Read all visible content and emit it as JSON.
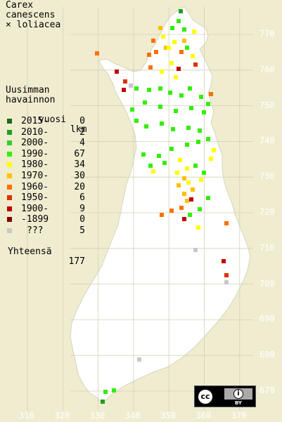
{
  "title": {
    "line1": "Carex",
    "line2": "canescens",
    "line3": "× loliacea"
  },
  "legend": {
    "heading1": "Uusimman",
    "heading2": "havainnon",
    "heading3_left": "vuosi",
    "heading3_right": "lkm",
    "items": [
      {
        "label": "2015-",
        "count": "0",
        "color": "#1a6b1a"
      },
      {
        "label": "2010-",
        "count": "2",
        "color": "#1ea01e"
      },
      {
        "label": "2000-",
        "count": "4",
        "color": "#33cc33"
      },
      {
        "label": "1990-",
        "count": "67",
        "color": "#33ee00"
      },
      {
        "label": "1980-",
        "count": "34",
        "color": "#ffff00"
      },
      {
        "label": "1970-",
        "count": "30",
        "color": "#ffc000"
      },
      {
        "label": "1960-",
        "count": "20",
        "color": "#ff7000"
      },
      {
        "label": "1950-",
        "count": "6",
        "color": "#e03000"
      },
      {
        "label": "1900-",
        "count": "9",
        "color": "#c00000"
      },
      {
        "label": "-1899",
        "count": "0",
        "color": "#800000"
      },
      {
        "label": "???",
        "count": "5",
        "color": "#c8c8c8"
      }
    ],
    "total_label": "Yhteensä",
    "total_count": "177"
  },
  "y_ticks": [
    "770",
    "760",
    "750",
    "740",
    "730",
    "720",
    "710",
    "700",
    "690",
    "680",
    "670"
  ],
  "x_ticks": [
    "310",
    "320",
    "330",
    "340",
    "350",
    "360",
    "370"
  ],
  "license": {
    "badge_text": "cc",
    "by_text": "BY"
  }
}
